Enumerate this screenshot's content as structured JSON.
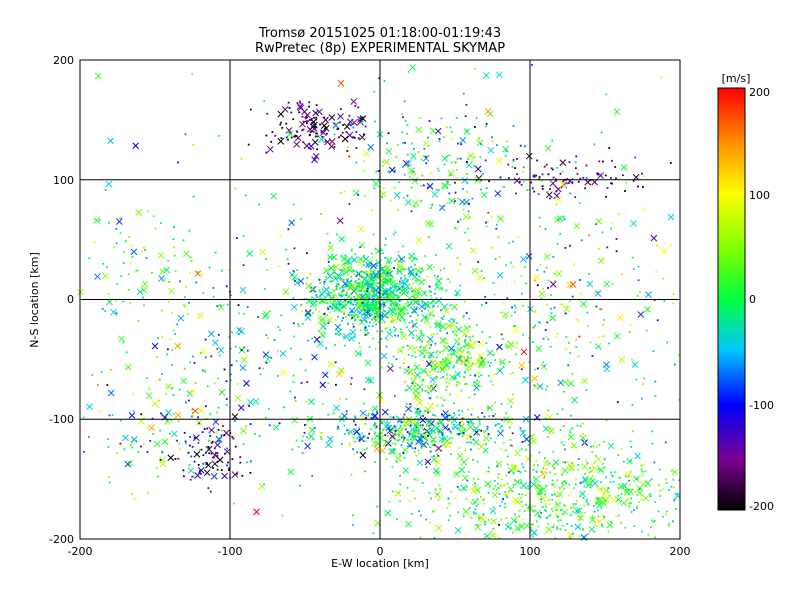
{
  "chart_data": {
    "type": "scatter",
    "title": "Tromsø 20151025 01:18:00-01:19:43",
    "subtitle": "RwPretec (8p) EXPERIMENTAL SKYMAP",
    "xlabel": "E-W location [km]",
    "ylabel": "N-S location [km]",
    "xlim": [
      -200,
      200
    ],
    "ylim": [
      -200,
      200
    ],
    "x_ticks": [
      "-200",
      "-100",
      "0",
      "100",
      "200"
    ],
    "y_ticks": [
      "-200",
      "-100",
      "0",
      "100",
      "200"
    ],
    "grid": true,
    "colorbar": {
      "label": "[m/s]",
      "range": [
        -200,
        200
      ],
      "ticks": [
        "200",
        "100",
        "0",
        "-100",
        "-200"
      ],
      "colormap": "rainbow (black-purple-blue-cyan-green-yellow-red)"
    },
    "marker_types": [
      "x (large)",
      "dot (small)"
    ],
    "clusters": [
      {
        "cx": -5,
        "cy": 5,
        "sx": 22,
        "sy": 18,
        "n": 900,
        "v": -5,
        "sv": 40
      },
      {
        "cx": 25,
        "cy": -110,
        "sx": 35,
        "sy": 10,
        "n": 420,
        "v": -20,
        "sv": 60
      },
      {
        "cx": 120,
        "cy": -165,
        "sx": 55,
        "sy": 25,
        "n": 700,
        "v": 15,
        "sv": 40
      },
      {
        "cx": 45,
        "cy": -55,
        "sx": 15,
        "sy": 20,
        "n": 260,
        "v": 20,
        "sv": 50
      },
      {
        "cx": -45,
        "cy": 145,
        "sx": 18,
        "sy": 10,
        "n": 140,
        "v": -170,
        "sv": 35
      },
      {
        "cx": 125,
        "cy": 100,
        "sx": 25,
        "sy": 8,
        "n": 80,
        "v": -160,
        "sv": 40
      },
      {
        "cx": 40,
        "cy": 110,
        "sx": 35,
        "sy": 25,
        "n": 220,
        "v": -20,
        "sv": 70
      },
      {
        "cx": -160,
        "cy": 30,
        "sx": 25,
        "sy": 25,
        "n": 90,
        "v": 20,
        "sv": 50
      },
      {
        "cx": -110,
        "cy": -130,
        "sx": 12,
        "sy": 15,
        "n": 90,
        "v": -150,
        "sv": 50
      },
      {
        "cx": -140,
        "cy": -100,
        "sx": 35,
        "sy": 30,
        "n": 130,
        "v": 0,
        "sv": 60
      },
      {
        "cx": 100,
        "cy": -30,
        "sx": 55,
        "sy": 40,
        "n": 260,
        "v": 20,
        "sv": 70
      },
      {
        "cx": -70,
        "cy": -40,
        "sx": 40,
        "sy": 40,
        "n": 160,
        "v": -30,
        "sv": 80
      },
      {
        "cx": 140,
        "cy": 30,
        "sx": 50,
        "sy": 50,
        "n": 100,
        "v": 10,
        "sv": 70
      },
      {
        "cx": 0,
        "cy": 0,
        "sx": 120,
        "sy": 120,
        "n": 250,
        "v": 0,
        "sv": 90
      }
    ]
  }
}
